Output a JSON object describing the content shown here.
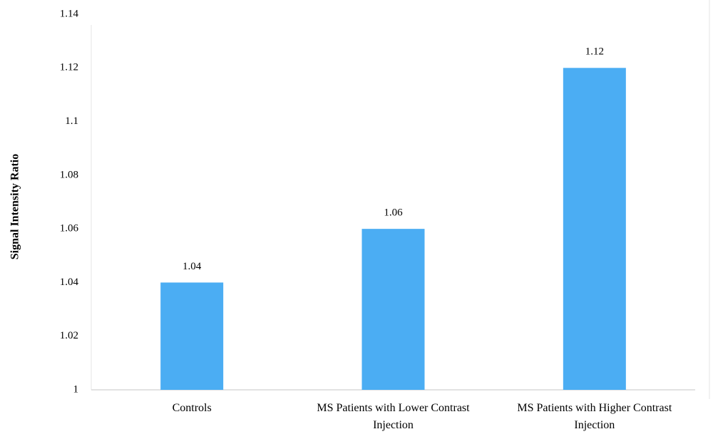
{
  "chart_data": {
    "type": "bar",
    "y_label": "Signal Intensity Ratio",
    "categories": [
      "Controls",
      "MS Patients with Lower Contrast Injection",
      "MS Patients with Higher Contrast Injection"
    ],
    "values": [
      1.04,
      1.06,
      1.12
    ],
    "color": "#4badf3",
    "ylim": [
      1,
      1.14
    ],
    "yticks": [
      1,
      1.02,
      1.04,
      1.06,
      1.08,
      1.1,
      1.12,
      1.14
    ],
    "grid": false
  }
}
